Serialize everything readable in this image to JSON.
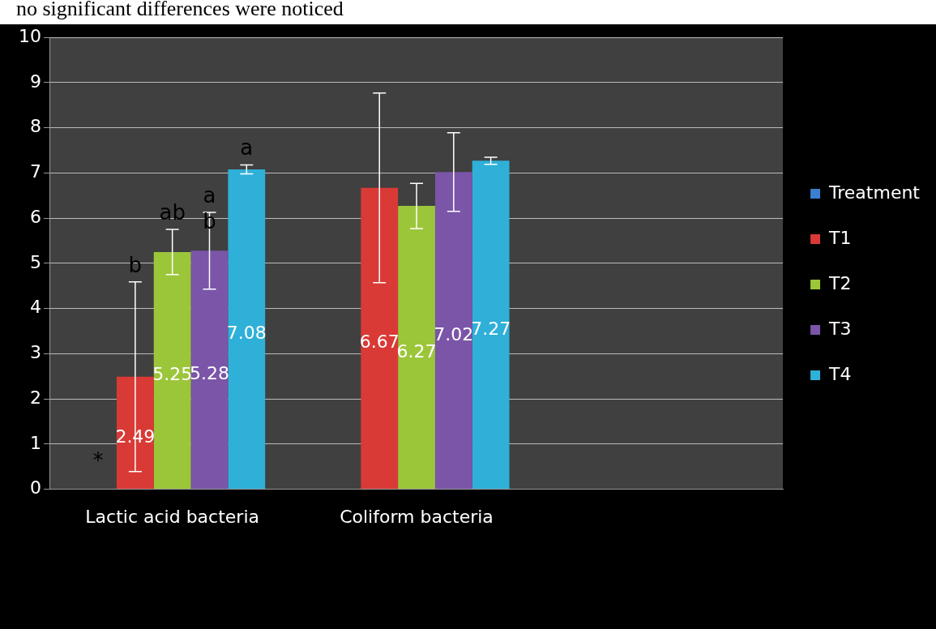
{
  "chart_data": {
    "type": "bar",
    "categories": [
      "Lactic acid bacteria",
      "Coliform bacteria",
      null
    ],
    "series": [
      {
        "name": "Treatment",
        "color": "#3a7fd0",
        "values": [
          null,
          null,
          null
        ]
      },
      {
        "name": "T1",
        "color": "#d93a35",
        "values": [
          2.49,
          6.67,
          null
        ],
        "errors": [
          2.1,
          2.1,
          null
        ]
      },
      {
        "name": "T2",
        "color": "#9cc63a",
        "values": [
          5.25,
          6.27,
          null
        ],
        "errors": [
          0.5,
          0.5,
          null
        ]
      },
      {
        "name": "T3",
        "color": "#7a55a8",
        "values": [
          5.28,
          7.02,
          null
        ],
        "errors": [
          0.85,
          0.87,
          null
        ]
      },
      {
        "name": "T4",
        "color": "#2fb0d8",
        "values": [
          7.08,
          7.27,
          null
        ],
        "errors": [
          0.1,
          0.08,
          null
        ]
      }
    ],
    "ylim": [
      0,
      10
    ],
    "yticks": [
      0,
      1,
      2,
      3,
      4,
      5,
      6,
      7,
      8,
      9,
      10
    ],
    "grid": "y",
    "legend": "right",
    "data_labels": true,
    "annotations": [
      "no significant differences were noticed",
      "*",
      "b",
      "ab",
      "a",
      "b",
      "a"
    ]
  }
}
